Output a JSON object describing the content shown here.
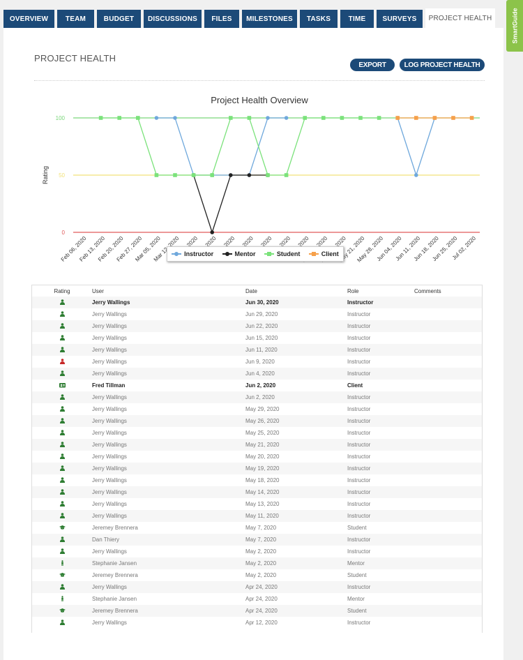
{
  "tabs": [
    {
      "label": "OVERVIEW",
      "active": false
    },
    {
      "label": "TEAM",
      "active": false
    },
    {
      "label": "BUDGET",
      "active": false
    },
    {
      "label": "DISCUSSIONS",
      "active": false
    },
    {
      "label": "FILES",
      "active": false
    },
    {
      "label": "MILESTONES",
      "active": false
    },
    {
      "label": "TASKS",
      "active": false
    },
    {
      "label": "TIME",
      "active": false
    },
    {
      "label": "SURVEYS",
      "active": false
    },
    {
      "label": "PROJECT HEALTH",
      "active": true
    }
  ],
  "smartguide_label": "SmartGuide",
  "page_title": "PROJECT HEALTH",
  "buttons": {
    "export": "EXPORT",
    "log": "LOG PROJECT HEALTH"
  },
  "colors": {
    "nav": "#1c4a78",
    "smartguide": "#8cc34a",
    "instructor": "#6fa8dc",
    "mentor": "#222222",
    "student": "#7be27b",
    "client": "#f6a04a",
    "good": "#2e7d32",
    "bad": "#c62828"
  },
  "chart_data": {
    "type": "line",
    "title": "Project Health Overview",
    "ylabel": "Rating",
    "yticks": [
      0,
      50,
      100
    ],
    "ylim": [
      0,
      100
    ],
    "categories": [
      "Feb 06, 2020",
      "Feb 13, 2020",
      "Feb 20, 2020",
      "Feb 27, 2020",
      "Mar 05, 2020",
      "Mar 12, 2020",
      "Mar 19, 2020",
      "Mar 26, 2020",
      "Apr 02, 2020",
      "Apr 09, 2020",
      "Apr 16, 2020",
      "Apr 23, 2020",
      "Apr 30, 2020",
      "May 07, 2020",
      "May 14, 2020",
      "May 21, 2020",
      "May 28, 2020",
      "Jun 04, 2020",
      "Jun 11, 2020",
      "Jun 18, 2020",
      "Jun 25, 2020",
      "Jul 02, 2020"
    ],
    "series": [
      {
        "name": "Instructor",
        "color": "#6fa8dc",
        "values": [
          null,
          null,
          null,
          null,
          100,
          100,
          50,
          50,
          50,
          50,
          100,
          100,
          null,
          null,
          null,
          null,
          null,
          100,
          50,
          100,
          null,
          null
        ]
      },
      {
        "name": "Mentor",
        "color": "#222222",
        "values": [
          null,
          null,
          null,
          null,
          null,
          null,
          50,
          0,
          50,
          50,
          50,
          null,
          null,
          null,
          null,
          null,
          null,
          null,
          null,
          null,
          null,
          null
        ]
      },
      {
        "name": "Student",
        "color": "#7be27b",
        "values": [
          null,
          100,
          100,
          100,
          50,
          50,
          50,
          50,
          100,
          100,
          50,
          50,
          100,
          100,
          100,
          100,
          100,
          null,
          null,
          null,
          null,
          null
        ]
      },
      {
        "name": "Client",
        "color": "#f6a04a",
        "values": [
          null,
          null,
          null,
          null,
          null,
          null,
          null,
          null,
          null,
          null,
          null,
          null,
          null,
          null,
          null,
          null,
          null,
          100,
          100,
          100,
          100,
          100
        ]
      }
    ],
    "reference_lines": [
      {
        "value": 100,
        "color": "#7bd67b"
      },
      {
        "value": 50,
        "color": "#f2e27a"
      },
      {
        "value": 0,
        "color": "#e05a5a"
      }
    ],
    "legend_position": "bottom"
  },
  "table": {
    "headers": {
      "rating": "Rating",
      "user": "User",
      "date": "Date",
      "role": "Role",
      "comments": "Comments"
    },
    "rows": [
      {
        "icon": "person-green",
        "user": "Jerry Wallings",
        "date": "Jun 30, 2020",
        "role": "Instructor",
        "bold": true
      },
      {
        "icon": "person-green",
        "user": "Jerry Wallings",
        "date": "Jun 29, 2020",
        "role": "Instructor"
      },
      {
        "icon": "person-green",
        "user": "Jerry Wallings",
        "date": "Jun 22, 2020",
        "role": "Instructor"
      },
      {
        "icon": "person-green",
        "user": "Jerry Wallings",
        "date": "Jun 15, 2020",
        "role": "Instructor"
      },
      {
        "icon": "person-green",
        "user": "Jerry Wallings",
        "date": "Jun 11, 2020",
        "role": "Instructor"
      },
      {
        "icon": "person-red",
        "user": "Jerry Wallings",
        "date": "Jun 9, 2020",
        "role": "Instructor"
      },
      {
        "icon": "person-green",
        "user": "Jerry Wallings",
        "date": "Jun 4, 2020",
        "role": "Instructor"
      },
      {
        "icon": "card-green",
        "user": "Fred Tillman",
        "date": "Jun 2, 2020",
        "role": "Client",
        "bold": true
      },
      {
        "icon": "person-green",
        "user": "Jerry Wallings",
        "date": "Jun 2, 2020",
        "role": "Instructor"
      },
      {
        "icon": "person-green",
        "user": "Jerry Wallings",
        "date": "May 29, 2020",
        "role": "Instructor"
      },
      {
        "icon": "person-green",
        "user": "Jerry Wallings",
        "date": "May 26, 2020",
        "role": "Instructor"
      },
      {
        "icon": "person-green",
        "user": "Jerry Wallings",
        "date": "May 25, 2020",
        "role": "Instructor"
      },
      {
        "icon": "person-green",
        "user": "Jerry Wallings",
        "date": "May 21, 2020",
        "role": "Instructor"
      },
      {
        "icon": "person-green",
        "user": "Jerry Wallings",
        "date": "May 20, 2020",
        "role": "Instructor"
      },
      {
        "icon": "person-green",
        "user": "Jerry Wallings",
        "date": "May 19, 2020",
        "role": "Instructor"
      },
      {
        "icon": "person-green",
        "user": "Jerry Wallings",
        "date": "May 18, 2020",
        "role": "Instructor"
      },
      {
        "icon": "person-green",
        "user": "Jerry Wallings",
        "date": "May 14, 2020",
        "role": "Instructor"
      },
      {
        "icon": "person-green",
        "user": "Jerry Wallings",
        "date": "May 13, 2020",
        "role": "Instructor"
      },
      {
        "icon": "person-green",
        "user": "Jerry Wallings",
        "date": "May 11, 2020",
        "role": "Instructor"
      },
      {
        "icon": "cap-green",
        "user": "Jeremey Brennera",
        "date": "May 7, 2020",
        "role": "Student"
      },
      {
        "icon": "person-green",
        "user": "Dan Thiery",
        "date": "May 7, 2020",
        "role": "Instructor"
      },
      {
        "icon": "person-green",
        "user": "Jerry Wallings",
        "date": "May 2, 2020",
        "role": "Instructor"
      },
      {
        "icon": "standing-green",
        "user": "Stephanie Jansen",
        "date": "May 2, 2020",
        "role": "Mentor"
      },
      {
        "icon": "cap-green",
        "user": "Jeremey Brennera",
        "date": "May 2, 2020",
        "role": "Student"
      },
      {
        "icon": "person-green",
        "user": "Jerry Wallings",
        "date": "Apr 24, 2020",
        "role": "Instructor"
      },
      {
        "icon": "standing-green",
        "user": "Stephanie Jansen",
        "date": "Apr 24, 2020",
        "role": "Mentor"
      },
      {
        "icon": "cap-green",
        "user": "Jeremey Brennera",
        "date": "Apr 24, 2020",
        "role": "Student"
      },
      {
        "icon": "person-green",
        "user": "Jerry Wallings",
        "date": "Apr 12, 2020",
        "role": "Instructor"
      }
    ]
  }
}
